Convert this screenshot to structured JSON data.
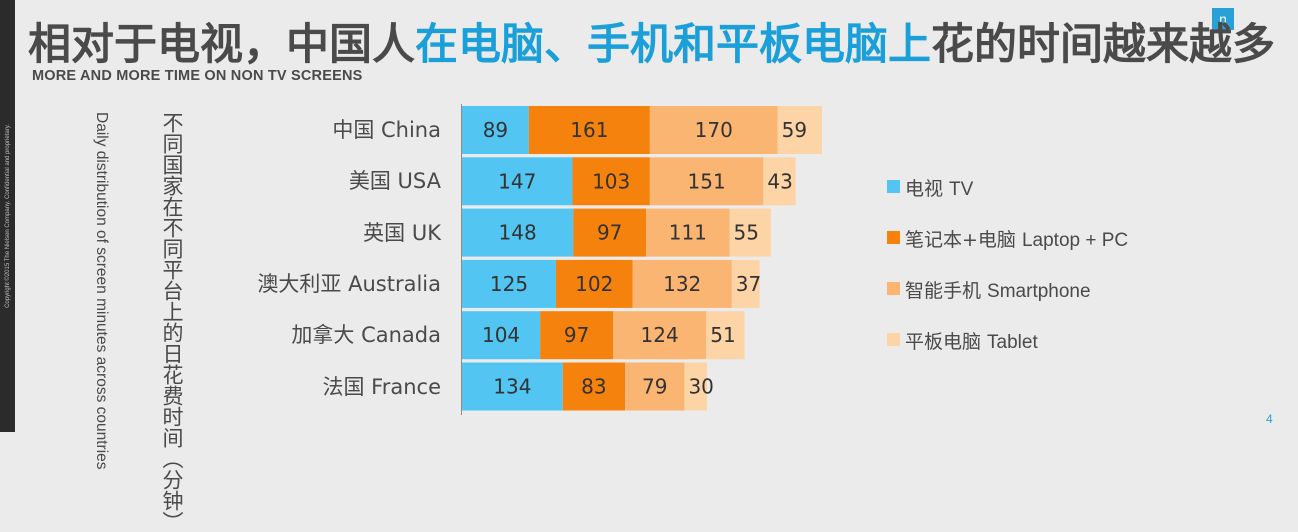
{
  "copyright": "Copyright ©2015 The Nielsen Company. Confidential and proprietary.",
  "logo_glyph": "n",
  "title": {
    "part1": "相对于电视，中国人",
    "part2": "在电脑、手机和平板电脑上",
    "part3": "花的时间越来越多"
  },
  "subtitle": "MORE AND MORE TIME ON NON TV SCREENS",
  "yaxis_label_zh": "不同国家在不同平台上的日花费时间（分钟）",
  "yaxis_label_en": "Daily distribution of screen minutes across countries",
  "page_number": "4",
  "colors": {
    "tv": "#52c5f2",
    "laptop_pc": "#f5820c",
    "smartphone": "#fab573",
    "tablet": "#fdd4a6",
    "title_highlight": "#1b9fd8",
    "background": "#ebebeb"
  },
  "chart_data": {
    "type": "bar",
    "orientation": "horizontal",
    "stacked": true,
    "categories": [
      "中国 China",
      "美国 USA",
      "英国 UK",
      "澳大利亚 Australia",
      "加拿大 Canada",
      "法国 France"
    ],
    "series": [
      {
        "name": "电视 TV",
        "name_zh": "电视",
        "name_en": "TV",
        "color": "#52c5f2",
        "values": [
          89,
          147,
          148,
          125,
          104,
          134
        ]
      },
      {
        "name": "笔记本+电脑 Laptop + PC",
        "name_zh": "笔记本+电脑",
        "name_en": "Laptop + PC",
        "color": "#f5820c",
        "values": [
          161,
          103,
          97,
          102,
          97,
          83
        ]
      },
      {
        "name": "智能手机 Smartphone",
        "name_zh": "智能手机",
        "name_en": "Smartphone",
        "color": "#fab573",
        "values": [
          170,
          151,
          111,
          132,
          124,
          79
        ]
      },
      {
        "name": "平板电脑 Tablet",
        "name_zh": "平板电脑",
        "name_en": "Tablet",
        "color": "#fdd4a6",
        "values": [
          59,
          43,
          55,
          37,
          51,
          30
        ]
      }
    ],
    "legend_position": "right",
    "data_labels": true,
    "grid": false
  }
}
